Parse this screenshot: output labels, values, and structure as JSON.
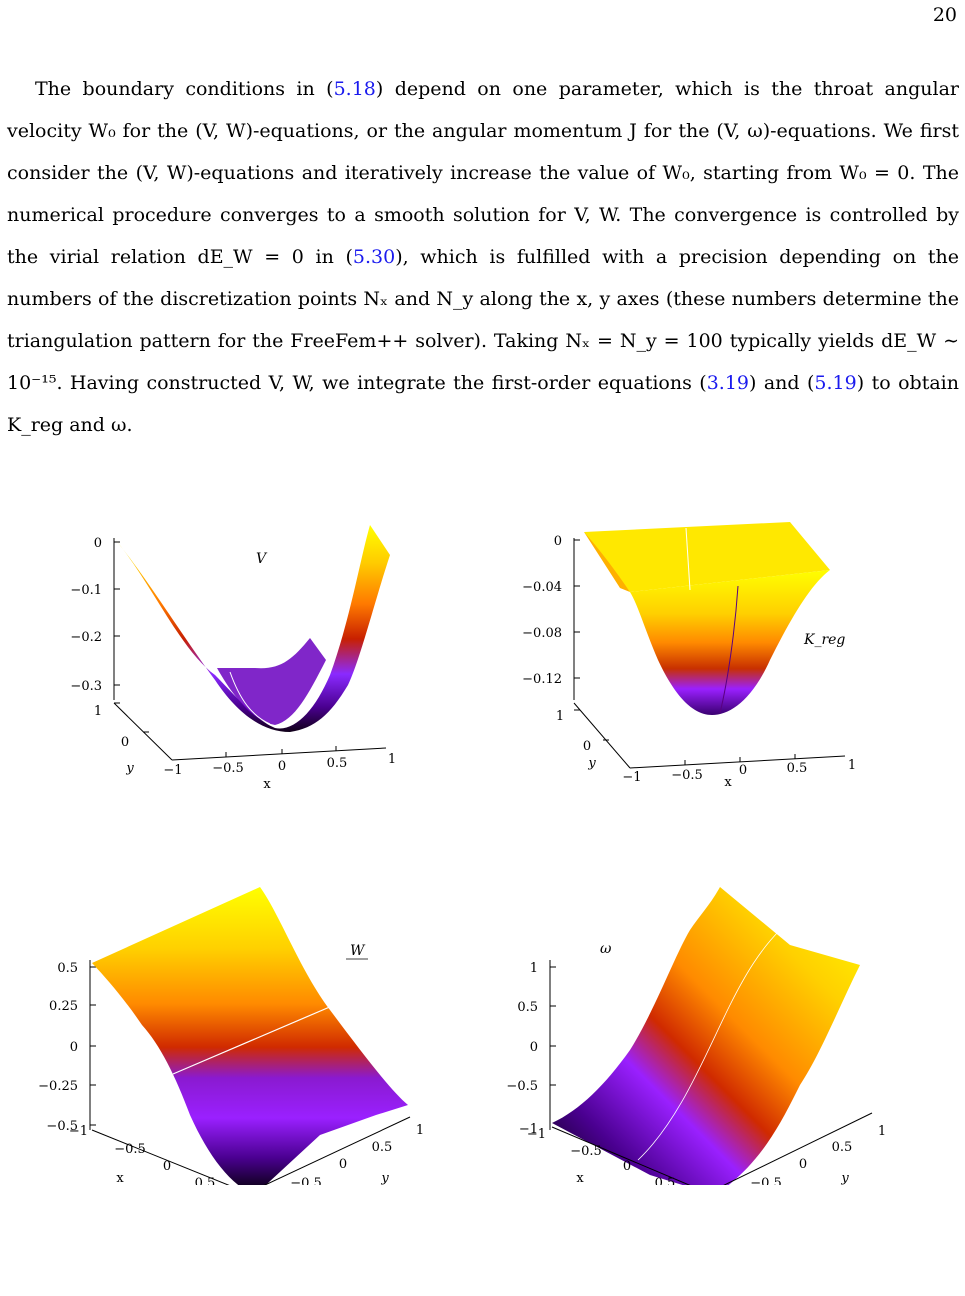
{
  "page": {
    "number": "20"
  },
  "paragraph": {
    "s1a": "The boundary conditions in (",
    "r1": "5.18",
    "s1b": ") depend on one parameter, which is the throat angular velocity W₀ for the (V, W)-equations, or the angular momentum J for the (V, ω)-equations. We first consider the (V, W)-equations and iteratively increase the value of W₀, starting from W₀ = 0. The numerical procedure converges to a smooth solution for V, W. The convergence is controlled by the virial relation dE_W = 0 in (",
    "r2": "5.30",
    "s2b": "), which is fulfilled with a precision depending on the numbers of the discretization points Nₓ and N_y along the x, y axes (these numbers determine the triangulation pattern for the FreeFem++ solver). Taking Nₓ = N_y = 100 typically yields dE_W ∼ 10⁻¹⁵. Having constructed V, W, we integrate the first-order equations (",
    "r3": "3.19",
    "s3a": ") and (",
    "r4": "5.19",
    "s3b": ") to obtain K_reg and ω."
  },
  "colors": {
    "link": "#1a1aee",
    "palette": [
      "#000000",
      "#5a00b4",
      "#9a20ff",
      "#c8002a",
      "#ff6400",
      "#ffd700",
      "#ffff00"
    ]
  },
  "chart_data": [
    {
      "type": "surface",
      "label": "V",
      "zticks": [
        "0",
        "−0.1",
        "−0.2",
        "−0.3"
      ],
      "xlabel": "x",
      "xticks": [
        "−1",
        "−0.5",
        "0",
        "0.5",
        "1"
      ],
      "ylabel": "y",
      "yticks": [
        "1",
        "0"
      ],
      "zlim": [
        -0.33,
        0
      ]
    },
    {
      "type": "surface",
      "label": "K_reg",
      "zticks": [
        "0",
        "−0.04",
        "−0.08",
        "−0.12"
      ],
      "xlabel": "x",
      "xticks": [
        "−1",
        "−0.5",
        "0",
        "0.5",
        "1"
      ],
      "ylabel": "y",
      "yticks": [
        "1",
        "0"
      ],
      "zlim": [
        -0.14,
        0
      ]
    },
    {
      "type": "surface",
      "label": "W",
      "zticks": [
        "0.5",
        "0.25",
        "0",
        "−0.25",
        "−0.5"
      ],
      "xlabel": "x",
      "xticks": [
        "−1",
        "−0.5",
        "0",
        "0.5",
        "1"
      ],
      "ylabel": "y",
      "yticks": [
        "−1",
        "−0.5",
        "0",
        "0.5",
        "1"
      ],
      "zlim": [
        -0.5,
        0.5
      ]
    },
    {
      "type": "surface",
      "label": "ω",
      "zticks": [
        "1",
        "0.5",
        "0",
        "−0.5",
        "−1"
      ],
      "xlabel": "x",
      "xticks": [
        "−1",
        "−0.5",
        "0",
        "0.5",
        "1"
      ],
      "ylabel": "y",
      "yticks": [
        "−1",
        "−0.5",
        "0",
        "0.5",
        "1"
      ],
      "zlim": [
        -1,
        1
      ]
    }
  ]
}
